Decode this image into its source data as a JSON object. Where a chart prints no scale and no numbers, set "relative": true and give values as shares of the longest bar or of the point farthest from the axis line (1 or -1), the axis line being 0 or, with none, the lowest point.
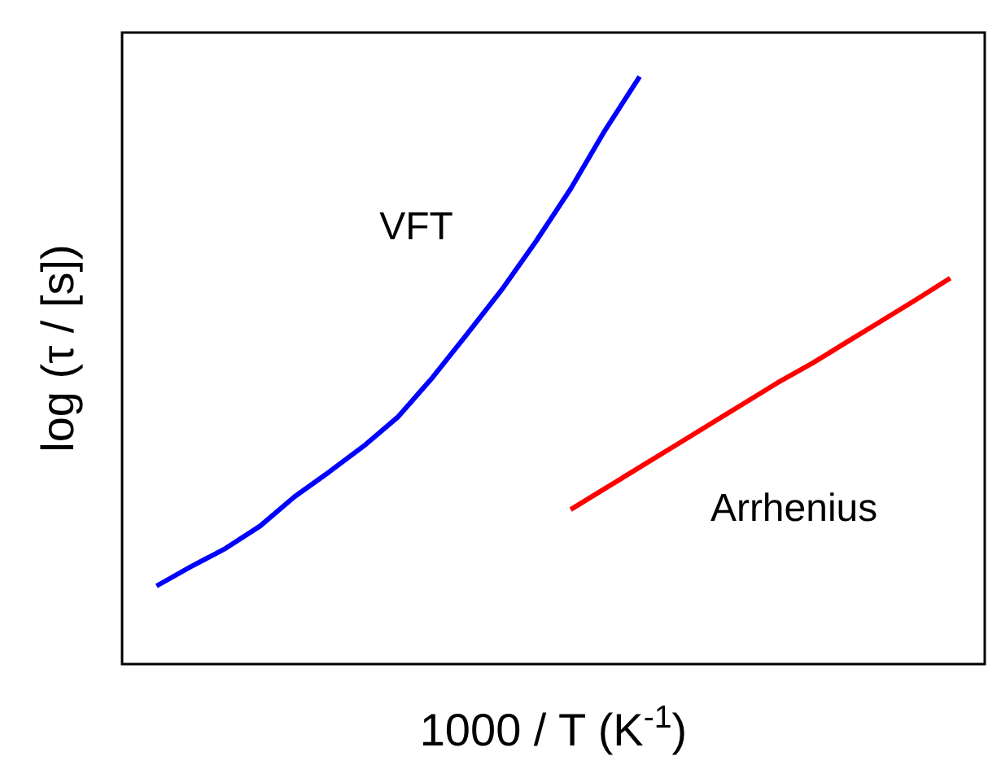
{
  "chart_data": {
    "type": "line",
    "relative": true,
    "xlabel": "1000 / T (K$^{-1}$)",
    "ylabel": "log (τ / [s])",
    "legend": false,
    "grid": false,
    "marker": "none",
    "line_style": "solid",
    "categories": [
      null,
      null,
      null,
      null,
      null,
      null,
      null,
      null,
      null,
      null,
      null,
      null,
      null,
      null,
      null,
      null,
      null,
      null,
      null,
      null,
      null,
      null,
      null,
      null,
      null,
      null
    ],
    "series": [
      {
        "name": "VFT",
        "color": "#0000ff",
        "values": [
          null,
          0.133,
          0.166,
          0.197,
          0.235,
          0.285,
          0.327,
          0.371,
          0.421,
          0.488,
          0.562,
          0.637,
          0.72,
          0.809,
          0.909,
          1,
          null,
          null,
          null,
          null,
          null,
          null,
          null,
          null,
          null,
          null
        ]
      },
      {
        "name": "Arrhenius",
        "color": "#ff0000",
        "values": [
          null,
          null,
          null,
          null,
          null,
          null,
          null,
          null,
          null,
          null,
          null,
          null,
          null,
          0.263,
          0.299,
          0.335,
          0.371,
          0.407,
          0.443,
          0.479,
          0.512,
          0.548,
          0.584,
          0.62,
          0.657,
          null
        ]
      }
    ]
  }
}
